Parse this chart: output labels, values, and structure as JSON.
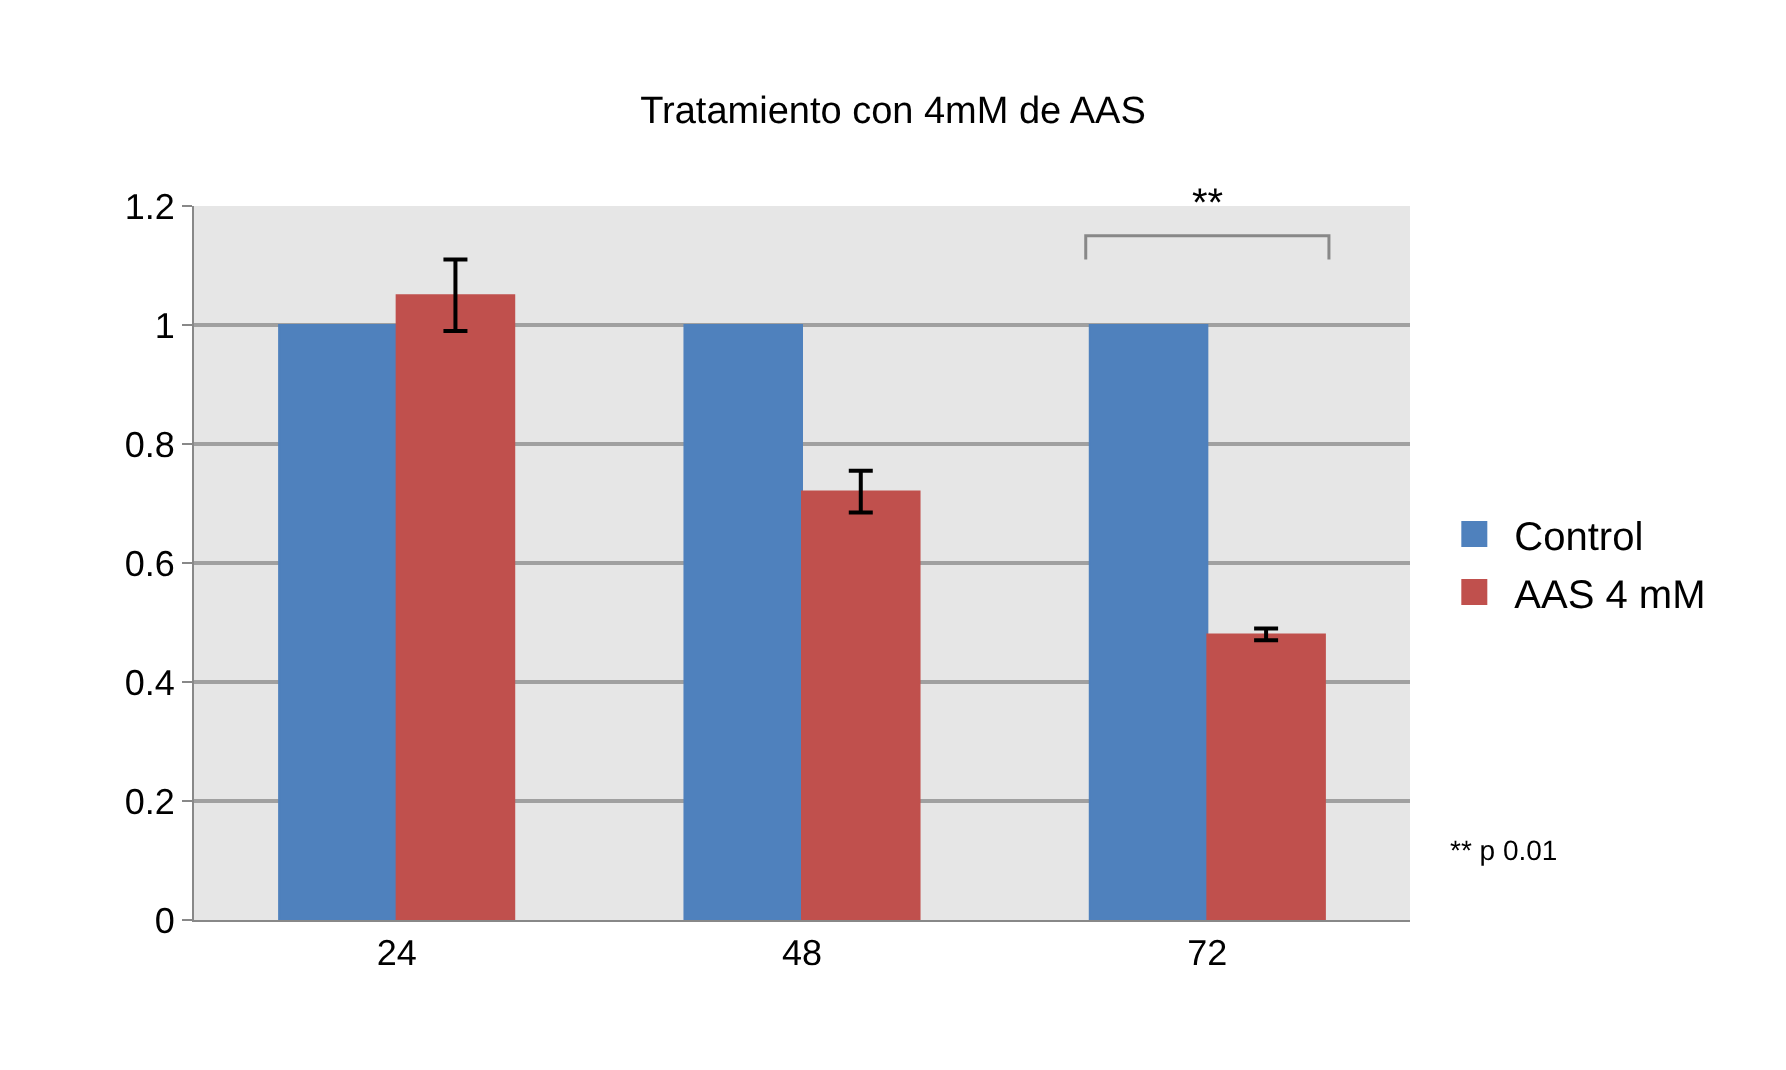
{
  "chart_data": {
    "type": "bar",
    "title": "Tratamiento con 4mM de AAS",
    "categories": [
      "24",
      "48",
      "72"
    ],
    "series": [
      {
        "name": "Control",
        "color": "#4f81bd",
        "values": [
          1,
          1,
          1
        ]
      },
      {
        "name": "AAS 4 mM",
        "color": "#c0504d",
        "values": [
          1.05,
          0.72,
          0.48
        ],
        "errors": [
          0.06,
          0.035,
          0.01
        ]
      }
    ],
    "ylim": [
      0,
      1.2
    ],
    "yticks": [
      0,
      0.2,
      0.4,
      0.6,
      0.8,
      1,
      1.2
    ],
    "grid": "y",
    "legend": "right",
    "annotations": [
      "**",
      "** p 0.01"
    ]
  }
}
